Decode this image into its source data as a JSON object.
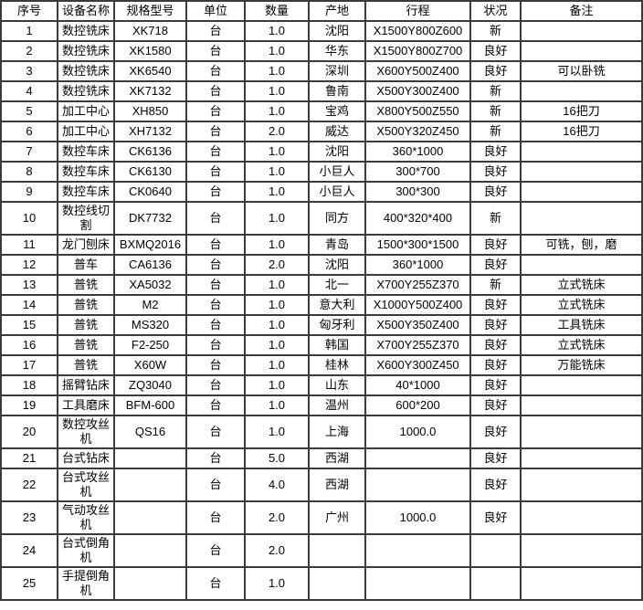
{
  "colors": {
    "border": "#3b3b3b",
    "text": "#000000",
    "background": "#ffffff"
  },
  "table": {
    "columns": [
      "序号",
      "设备名称",
      "规格型号",
      "单位",
      "数量",
      "产地",
      "行程",
      "状况",
      "备注"
    ],
    "rows": [
      [
        "1",
        "数控铣床",
        "XK718",
        "台",
        "1.0",
        "沈阳",
        "X1500Y800Z600",
        "新",
        ""
      ],
      [
        "2",
        "数控铣床",
        "XK1580",
        "台",
        "1.0",
        "华东",
        "X1500Y800Z700",
        "良好",
        ""
      ],
      [
        "3",
        "数控铣床",
        "XK6540",
        "台",
        "1.0",
        "深圳",
        "X600Y500Z400",
        "良好",
        "可以卧铣"
      ],
      [
        "4",
        "数控铣床",
        "XK7132",
        "台",
        "1.0",
        "鲁南",
        "X500Y300Z400",
        "新",
        ""
      ],
      [
        "5",
        "加工中心",
        "XH850",
        "台",
        "1.0",
        "宝鸡",
        "X800Y500Z550",
        "新",
        "16把刀"
      ],
      [
        "6",
        "加工中心",
        "XH7132",
        "台",
        "2.0",
        "威达",
        "X500Y320Z450",
        "新",
        "16把刀"
      ],
      [
        "7",
        "数控车床",
        "CK6136",
        "台",
        "1.0",
        "沈阳",
        "360*1000",
        "良好",
        ""
      ],
      [
        "8",
        "数控车床",
        "CK6130",
        "台",
        "1.0",
        "小巨人",
        "300*700",
        "良好",
        ""
      ],
      [
        "9",
        "数控车床",
        "CK0640",
        "台",
        "1.0",
        "小巨人",
        "300*300",
        "良好",
        ""
      ],
      [
        "10",
        "数控线切割",
        "DK7732",
        "台",
        "1.0",
        "同方",
        "400*320*400",
        "新",
        ""
      ],
      [
        "11",
        "龙门刨床",
        "BXMQ2016",
        "台",
        "1.0",
        "青岛",
        "1500*300*1500",
        "良好",
        "可铣，刨，磨"
      ],
      [
        "12",
        "普车",
        "CA6136",
        "台",
        "2.0",
        "沈阳",
        "360*1000",
        "良好",
        ""
      ],
      [
        "13",
        "普铣",
        "XA5032",
        "台",
        "1.0",
        "北一",
        "X700Y255Z370",
        "新",
        "立式铣床"
      ],
      [
        "14",
        "普铣",
        "M2",
        "台",
        "1.0",
        "意大利",
        "X1000Y500Z400",
        "良好",
        "立式铣床"
      ],
      [
        "15",
        "普铣",
        "MS320",
        "台",
        "1.0",
        "匈牙利",
        "X500Y350Z400",
        "良好",
        "工具铣床"
      ],
      [
        "16",
        "普铣",
        "F2-250",
        "台",
        "1.0",
        "韩国",
        "X700Y255Z370",
        "良好",
        "立式铣床"
      ],
      [
        "17",
        "普铣",
        "X60W",
        "台",
        "1.0",
        "桂林",
        "X600Y300Z450",
        "良好",
        "万能铣床"
      ],
      [
        "18",
        "摇臂钻床",
        "ZQ3040",
        "台",
        "1.0",
        "山东",
        "40*1000",
        "良好",
        ""
      ],
      [
        "19",
        "工具磨床",
        "BFM-600",
        "台",
        "1.0",
        "温州",
        "600*200",
        "良好",
        ""
      ],
      [
        "20",
        "数控攻丝机",
        "QS16",
        "台",
        "1.0",
        "上海",
        "1000.0",
        "良好",
        ""
      ],
      [
        "21",
        "台式钻床",
        "",
        "台",
        "5.0",
        "西湖",
        "",
        "良好",
        ""
      ],
      [
        "22",
        "台式攻丝机",
        "",
        "台",
        "4.0",
        "西湖",
        "",
        "良好",
        ""
      ],
      [
        "23",
        "气动攻丝机",
        "",
        "台",
        "2.0",
        "广州",
        "1000.0",
        "良好",
        ""
      ],
      [
        "24",
        "台式倒角机",
        "",
        "台",
        "2.0",
        "",
        "",
        "",
        ""
      ],
      [
        "25",
        "手提倒角机",
        "",
        "台",
        "1.0",
        "",
        "",
        "",
        ""
      ]
    ]
  }
}
